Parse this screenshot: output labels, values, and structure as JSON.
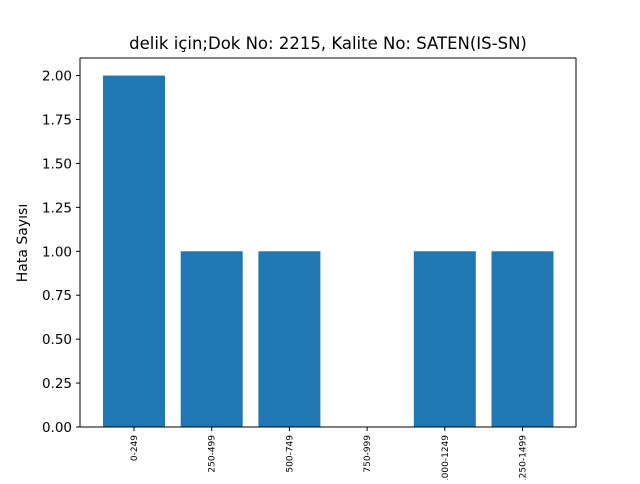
{
  "chart_data": {
    "type": "bar",
    "title": "delik için;Dok No: 2215, Kalite No: SATEN(IS-SN)",
    "xlabel": "",
    "ylabel": "Hata Sayısı",
    "categories": [
      "0-249",
      "250-499",
      "500-749",
      "750-999",
      "1000-1249",
      "1250-1499"
    ],
    "values": [
      2,
      1,
      1,
      0,
      1,
      1
    ],
    "ylim": [
      0,
      2.1
    ],
    "yticks": [
      "0.00",
      "0.25",
      "0.50",
      "0.75",
      "1.00",
      "1.25",
      "1.50",
      "1.75",
      "2.00"
    ],
    "bar_color": "#1f77b4",
    "grid": false,
    "legend": "none"
  }
}
